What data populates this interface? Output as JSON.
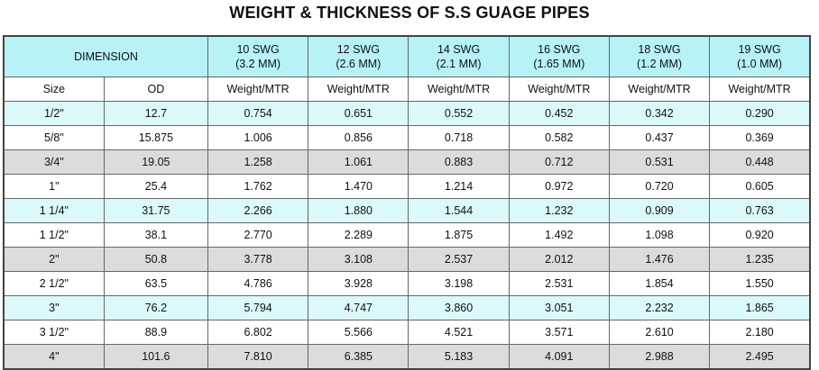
{
  "title": "WEIGHT & THICKNESS OF S.S GUAGE PIPES",
  "header": {
    "dimension": "DIMENSION",
    "gauges": [
      {
        "swg": "10 SWG",
        "mm": "(3.2 MM)"
      },
      {
        "swg": "12 SWG",
        "mm": "(2.6 MM)"
      },
      {
        "swg": "14 SWG",
        "mm": "(2.1 MM)"
      },
      {
        "swg": "16 SWG",
        "mm": "(1.65 MM)"
      },
      {
        "swg": "18 SWG",
        "mm": "(1.2 MM)"
      },
      {
        "swg": "19 SWG",
        "mm": "(1.0 MM)"
      }
    ],
    "size_label": "Size",
    "od_label": "OD",
    "weight_label": "Weight/MTR"
  },
  "rows": [
    {
      "size": "1/2\"",
      "od": "12.7",
      "w": [
        "0.754",
        "0.651",
        "0.552",
        "0.452",
        "0.342",
        "0.290"
      ],
      "shade": "cyan"
    },
    {
      "size": "5/8\"",
      "od": "15.875",
      "w": [
        "1.006",
        "0.856",
        "0.718",
        "0.582",
        "0.437",
        "0.369"
      ],
      "shade": "white"
    },
    {
      "size": "3/4\"",
      "od": "19.05",
      "w": [
        "1.258",
        "1.061",
        "0.883",
        "0.712",
        "0.531",
        "0.448"
      ],
      "shade": "grey"
    },
    {
      "size": "1\"",
      "od": "25.4",
      "w": [
        "1.762",
        "1.470",
        "1.214",
        "0.972",
        "0.720",
        "0.605"
      ],
      "shade": "white"
    },
    {
      "size": "1 1/4\"",
      "od": "31.75",
      "w": [
        "2.266",
        "1.880",
        "1.544",
        "1.232",
        "0.909",
        "0.763"
      ],
      "shade": "cyan"
    },
    {
      "size": "1 1/2\"",
      "od": "38.1",
      "w": [
        "2.770",
        "2.289",
        "1.875",
        "1.492",
        "1.098",
        "0.920"
      ],
      "shade": "white"
    },
    {
      "size": "2\"",
      "od": "50.8",
      "w": [
        "3.778",
        "3.108",
        "2.537",
        "2.012",
        "1.476",
        "1.235"
      ],
      "shade": "grey"
    },
    {
      "size": "2 1/2\"",
      "od": "63.5",
      "w": [
        "4.786",
        "3.928",
        "3.198",
        "2.531",
        "1.854",
        "1.550"
      ],
      "shade": "white"
    },
    {
      "size": "3\"",
      "od": "76.2",
      "w": [
        "5.794",
        "4.747",
        "3.860",
        "3.051",
        "2.232",
        "1.865"
      ],
      "shade": "cyan"
    },
    {
      "size": "3 1/2\"",
      "od": "88.9",
      "w": [
        "6.802",
        "5.566",
        "4.521",
        "3.571",
        "2.610",
        "2.180"
      ],
      "shade": "white"
    },
    {
      "size": "4\"",
      "od": "101.6",
      "w": [
        "7.810",
        "6.385",
        "5.183",
        "4.091",
        "2.988",
        "2.495"
      ],
      "shade": "grey"
    }
  ]
}
